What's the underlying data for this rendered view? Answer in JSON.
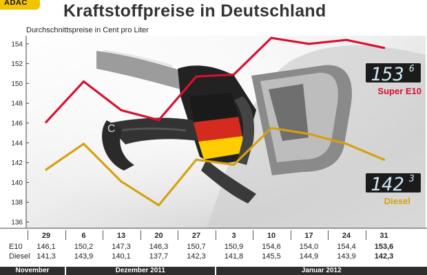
{
  "header": {
    "logo_text": "ADAC",
    "title": "Kraftstoffpreise in Deutschland",
    "subtitle": "Durchschnittspreise in Cent pro Liter"
  },
  "colors": {
    "e10": "#d8102e",
    "diesel": "#d4a10e",
    "badge_bg": "#1b1b1b",
    "month_bar": "#2e2e2e"
  },
  "chart_data": {
    "type": "line",
    "title": "Kraftstoffpreise in Deutschland",
    "subtitle": "Durchschnittspreise in Cent pro Liter",
    "categories": [
      "29",
      "6",
      "13",
      "20",
      "27",
      "3",
      "10",
      "17",
      "24",
      "31"
    ],
    "series": [
      {
        "name": "Super E10",
        "values": [
          146.1,
          150.2,
          147.3,
          146.3,
          150.7,
          150.9,
          154.6,
          154.0,
          154.4,
          153.6
        ]
      },
      {
        "name": "Diesel",
        "values": [
          141.3,
          143.9,
          140.1,
          137.7,
          142.3,
          141.8,
          145.5,
          144.9,
          143.9,
          142.3
        ]
      }
    ],
    "ylim": [
      136,
      155
    ],
    "yticks": [
      136,
      138,
      140,
      142,
      144,
      146,
      148,
      150,
      152,
      154
    ],
    "grid": false,
    "badges": [
      {
        "series": "Super E10",
        "display_main": "153",
        "display_sup": "6",
        "label": "Super E10"
      },
      {
        "series": "Diesel",
        "display_main": "142",
        "display_sup": "3",
        "label": "Diesel"
      }
    ]
  },
  "table": {
    "row_labels": [
      "E10",
      "Diesel"
    ],
    "dates": [
      "29",
      "6",
      "13",
      "20",
      "27",
      "3",
      "10",
      "17",
      "24",
      "31"
    ],
    "e10": [
      "146,1",
      "150,2",
      "147,3",
      "146,3",
      "150,7",
      "150,9",
      "154,6",
      "154,0",
      "154,4",
      "153,6"
    ],
    "diesel": [
      "141,3",
      "143,9",
      "140,1",
      "137,7",
      "142,3",
      "141,8",
      "145,5",
      "144,9",
      "143,9",
      "142,3"
    ],
    "months": [
      "November",
      "Dezember 2011",
      "Januar 2012"
    ]
  }
}
